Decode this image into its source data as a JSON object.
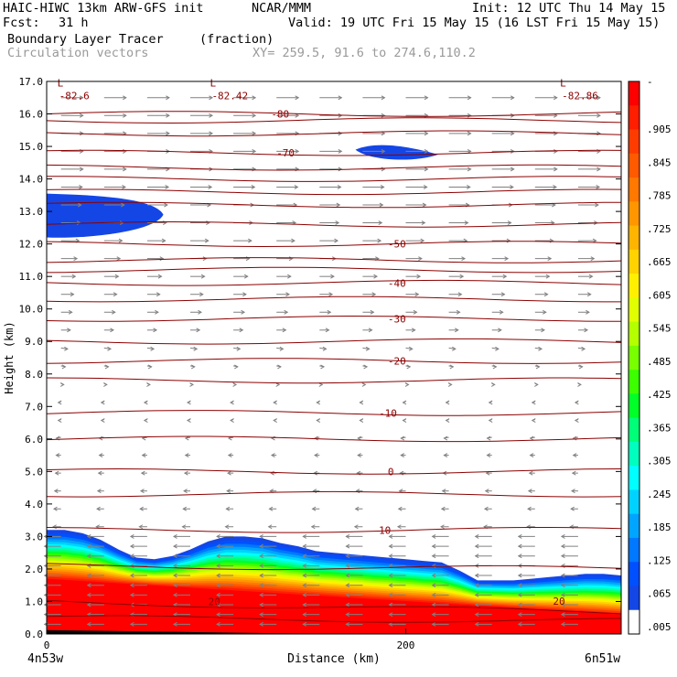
{
  "header": {
    "model": "HAIC-HIWC 13km ARW-GFS init",
    "org": "NCAR/MMM",
    "init": "Init: 12 UTC Thu 14 May 15",
    "fcst_label": "Fcst:",
    "fcst_value": "31 h",
    "valid": "Valid: 19 UTC Fri 15 May 15 (16 LST Fri 15 May 15)",
    "field": "Boundary Layer Tracer",
    "units": "(fraction)",
    "vectors": "Circulation vectors",
    "xy": "XY= 259.5, 91.6 to 274.6,110.2"
  },
  "colors": {
    "contour": "#8b0000",
    "vector": "#808080",
    "tracer_blue": "#1446e6"
  },
  "chart_data": {
    "type": "heatmap",
    "xlabel": "Distance (km)",
    "ylabel": "Height (km)",
    "xlim": [
      0,
      320
    ],
    "ylim": [
      0,
      17
    ],
    "x_ticks": [
      0,
      200
    ],
    "x_tick_labels": [
      "0",
      "200"
    ],
    "x_end_labels": [
      "4n53w",
      "6n51w"
    ],
    "y_ticks": [
      0,
      1,
      2,
      3,
      4,
      5,
      6,
      7,
      8,
      9,
      10,
      11,
      12,
      13,
      14,
      15,
      16,
      17
    ],
    "y_tick_labels": [
      "0.0",
      "1.0",
      "2.0",
      "3.0",
      "4.0",
      "5.0",
      "6.0",
      "7.0",
      "8.0",
      "9.0",
      "10.0",
      "11.0",
      "12.0",
      "13.0",
      "14.0",
      "15.0",
      "16.0",
      "17.0"
    ],
    "colorbar": {
      "labels": [
        ".905",
        ".845",
        ".785",
        ".725",
        ".665",
        ".605",
        ".545",
        ".485",
        ".425",
        ".365",
        ".305",
        ".245",
        ".185",
        ".125",
        ".065",
        ".005"
      ],
      "top_label": "-",
      "colors": [
        "#ff0000",
        "#ff1e00",
        "#ff3c00",
        "#ff5a00",
        "#ff7800",
        "#ff9600",
        "#ffb400",
        "#ffd200",
        "#fff000",
        "#e1ff00",
        "#b4ff00",
        "#78ff00",
        "#3cff00",
        "#00ff28",
        "#00ff78",
        "#00ffbe",
        "#00ffff",
        "#00d2ff",
        "#00a5ff",
        "#0078ff",
        "#0050ff",
        "#1446e6",
        "#ffffff"
      ]
    },
    "temperature_contours": [
      {
        "label": "-80",
        "height_km": 16.0
      },
      {
        "label": "-70",
        "height_km": 14.8
      },
      {
        "label": "-50",
        "height_km": 12.0
      },
      {
        "label": "-40",
        "height_km": 10.8
      },
      {
        "label": "-30",
        "height_km": 9.7
      },
      {
        "label": "-20",
        "height_km": 8.4
      },
      {
        "label": "-10",
        "height_km": 6.8
      },
      {
        "label": "0",
        "height_km": 5.0
      },
      {
        "label": "10",
        "height_km": 3.2
      },
      {
        "label": "20",
        "height_km": 1.0
      }
    ],
    "lows": [
      {
        "mark": "L",
        "value": "-82.6",
        "x_km": 10
      },
      {
        "mark": "L",
        "value": "-82.42",
        "x_km": 95
      },
      {
        "mark": "L",
        "value": "-82.86",
        "x_km": 290
      }
    ]
  }
}
